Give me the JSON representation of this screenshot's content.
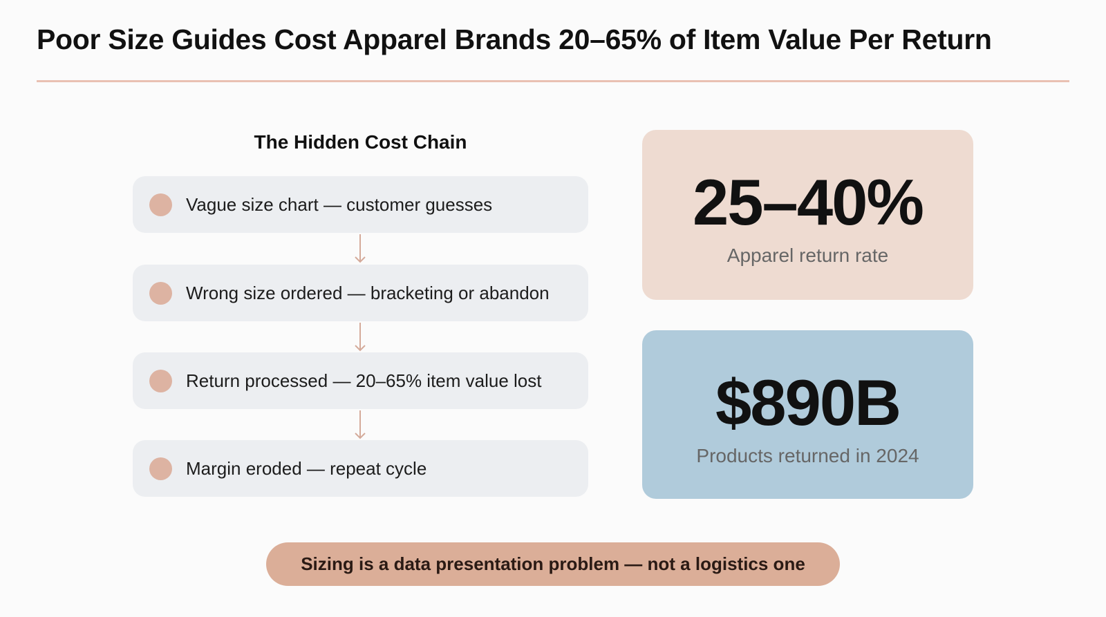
{
  "header": {
    "title": "Poor Size Guides Cost Apparel Brands 20–65% of Item Value Per Return"
  },
  "chain": {
    "heading": "The Hidden Cost Chain",
    "steps": [
      "Vague size chart — customer guesses",
      "Wrong size ordered — bracketing or abandon",
      "Return processed — 20–65% item value lost",
      "Margin eroded — repeat cycle"
    ]
  },
  "stats": [
    {
      "value": "25–40%",
      "label": "Apparel return rate"
    },
    {
      "value": "$890B",
      "label": "Products returned in 2024"
    }
  ],
  "footer": {
    "text": "Sizing is a data presentation problem — not a logistics one"
  }
}
